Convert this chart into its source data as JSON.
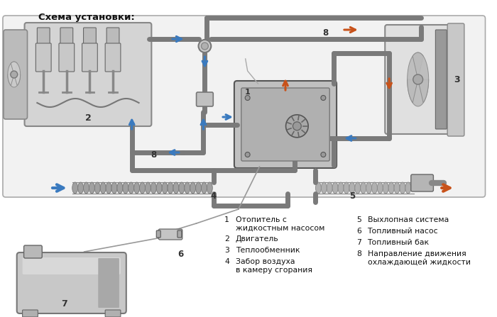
{
  "bg_color": "#ffffff",
  "diagram_bg": "#f0f0f0",
  "pipe_color": "#7a7a7a",
  "pipe_lw": 5,
  "arrow_blue": "#3a7abf",
  "arrow_orange": "#c8521a",
  "title": "Схема установки:",
  "title_fontsize": 9.5,
  "legend_fontsize": 7.8,
  "legend_left": [
    [
      "1",
      "Отопитель с\nжидкостным насосом"
    ],
    [
      "2",
      "Двигатель"
    ],
    [
      "3",
      "Теплообменник"
    ],
    [
      "4",
      "Забор воздуха\nв камеру сгорания"
    ]
  ],
  "legend_right": [
    [
      "5",
      "Выхлопная система"
    ],
    [
      "6",
      "Топливный насос"
    ],
    [
      "7",
      "Топливный бак"
    ],
    [
      "8",
      "Направление движения\nохлаждающей жидкости"
    ]
  ]
}
